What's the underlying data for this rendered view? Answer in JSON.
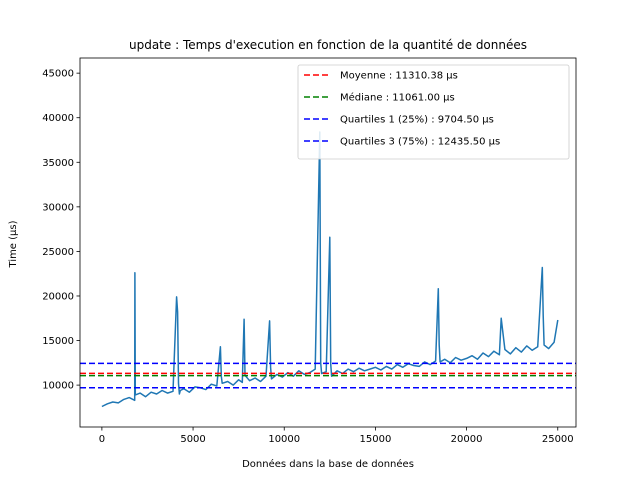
{
  "chart_data": {
    "type": "line",
    "title": "update : Temps d'execution en fonction de la quantité de données",
    "xlabel": "Données dans la base de données",
    "ylabel": "Time (µs)",
    "xlim": [
      -1200,
      26000
    ],
    "ylim": [
      5300,
      46700
    ],
    "xticks": [
      0,
      5000,
      10000,
      15000,
      20000,
      25000
    ],
    "yticks": [
      10000,
      15000,
      20000,
      25000,
      30000,
      35000,
      40000,
      45000
    ],
    "grid": false,
    "legend_position": "top-right",
    "series": [
      {
        "role": "measurement",
        "color": "#1f77b4",
        "x": [
          0,
          300,
          600,
          900,
          1200,
          1500,
          1800,
          1810,
          1830,
          2100,
          2400,
          2700,
          3000,
          3300,
          3600,
          3900,
          4100,
          4150,
          4200,
          4250,
          4300,
          4500,
          4800,
          5100,
          5400,
          5700,
          6000,
          6300,
          6500,
          6550,
          6600,
          6900,
          7200,
          7500,
          7700,
          7800,
          7850,
          8100,
          8400,
          8700,
          9000,
          9200,
          9250,
          9300,
          9600,
          9900,
          10200,
          10500,
          10800,
          11100,
          11400,
          11700,
          11950,
          12000,
          12050,
          12300,
          12500,
          12550,
          12600,
          12900,
          13200,
          13500,
          13800,
          14100,
          14400,
          14700,
          15000,
          15300,
          15600,
          15900,
          16200,
          16500,
          16800,
          17100,
          17400,
          17700,
          18000,
          18300,
          18450,
          18500,
          18550,
          18800,
          19100,
          19400,
          19700,
          20000,
          20300,
          20600,
          20900,
          21200,
          21500,
          21800,
          21900,
          22100,
          22400,
          22700,
          23000,
          23300,
          23600,
          23900,
          24150,
          24200,
          24250,
          24500,
          24800,
          25000
        ],
        "values": [
          7600,
          7900,
          8100,
          8000,
          8400,
          8600,
          8300,
          22600,
          8900,
          9100,
          8700,
          9200,
          9000,
          9400,
          9100,
          9300,
          19900,
          18200,
          10200,
          9000,
          9400,
          9600,
          9200,
          9800,
          9700,
          9500,
          10100,
          9900,
          14300,
          11000,
          10200,
          10400,
          10000,
          10600,
          10300,
          17400,
          11100,
          10500,
          10800,
          10400,
          11000,
          17200,
          12000,
          10700,
          11200,
          10900,
          11400,
          11000,
          11600,
          11200,
          11400,
          11800,
          38400,
          12500,
          11300,
          11500,
          26600,
          12400,
          11000,
          11600,
          11300,
          11800,
          11500,
          11900,
          11600,
          11800,
          12000,
          11700,
          12100,
          11800,
          12300,
          12000,
          12400,
          12200,
          12100,
          12600,
          12300,
          12700,
          20800,
          14500,
          12600,
          12900,
          12500,
          13100,
          12800,
          13000,
          13300,
          12900,
          13600,
          13200,
          13800,
          13400,
          17500,
          14000,
          13500,
          14200,
          13700,
          14400,
          13900,
          14300,
          23200,
          17800,
          14500,
          14100,
          14800,
          17300
        ]
      }
    ],
    "reference_lines": [
      {
        "name": "Moyenne : 11310.38 µs",
        "value": 11310.38,
        "color": "#ff0000"
      },
      {
        "name": "Médiane : 11061.00 µs",
        "value": 11061.0,
        "color": "#008000"
      },
      {
        "name": "Quartiles 1 (25%) : 9704.50 µs",
        "value": 9704.5,
        "color": "#0000ff"
      },
      {
        "name": "Quartiles 3 (75%) : 12435.50 µs",
        "value": 12435.5,
        "color": "#0000ff"
      }
    ]
  }
}
